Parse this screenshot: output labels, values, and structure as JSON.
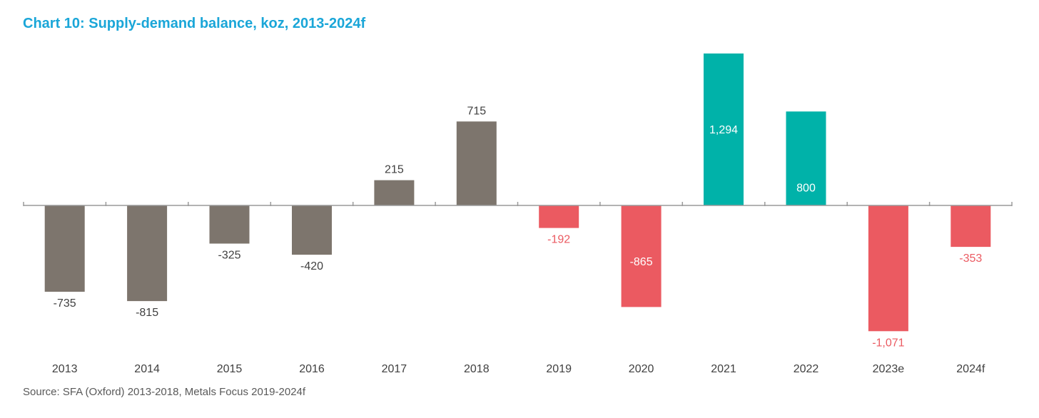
{
  "title": "Chart 10: Supply-demand balance, koz, 2013-2024f",
  "source": "Source: SFA (Oxford) 2013-2018, Metals Focus 2019-2024f",
  "chart_data": {
    "type": "bar",
    "categories": [
      "2013",
      "2014",
      "2015",
      "2016",
      "2017",
      "2018",
      "2019",
      "2020",
      "2021",
      "2022",
      "2023e",
      "2024f"
    ],
    "values": [
      -735,
      -815,
      -325,
      -420,
      215,
      715,
      -192,
      -865,
      1294,
      800,
      -1071,
      -353
    ],
    "data_labels": [
      "-735",
      "-815",
      "-325",
      "-420",
      "215",
      "715",
      "-192",
      "-865",
      "1,294",
      "800",
      "-1,071",
      "-353"
    ],
    "title": "Chart 10: Supply-demand balance, koz, 2013-2024f",
    "xlabel": "",
    "ylabel": "",
    "ylim": [
      -1200,
      1400
    ],
    "grid": false,
    "legend": "none",
    "colors": {
      "historical": "#7d756d",
      "deficit_forecast": "#eb5a61",
      "surplus_forecast": "#00b2a9",
      "label_dark": "#404040",
      "label_red": "#eb5a61",
      "label_inside": "#ffffff",
      "axis": "#9a9a9a",
      "title": "#1aa6d8"
    }
  }
}
